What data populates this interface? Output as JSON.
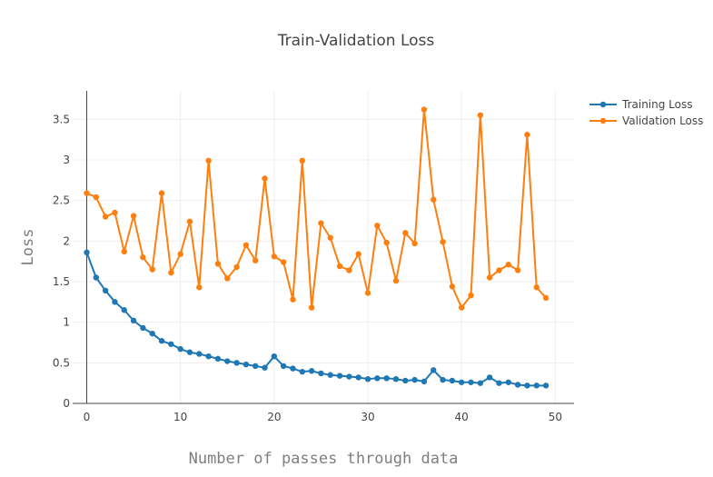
{
  "chart_data": {
    "type": "line",
    "title": "Train-Validation Loss",
    "xlabel": "Number of passes through data",
    "ylabel": "Loss",
    "xlim": [
      -1.5,
      52
    ],
    "ylim": [
      0,
      3.85
    ],
    "xticks": [
      0,
      10,
      20,
      30,
      40,
      50
    ],
    "yticks": [
      0,
      0.5,
      1,
      1.5,
      2,
      2.5,
      3,
      3.5
    ],
    "xtick_labels": [
      "0",
      "10",
      "20",
      "30",
      "40",
      "50"
    ],
    "ytick_labels": [
      "0",
      "0.5",
      "1",
      "1.5",
      "2",
      "2.5",
      "3",
      "3.5"
    ],
    "grid": true,
    "legend_position": "top-right",
    "x": [
      0,
      1,
      2,
      3,
      4,
      5,
      6,
      7,
      8,
      9,
      10,
      11,
      12,
      13,
      14,
      15,
      16,
      17,
      18,
      19,
      20,
      21,
      22,
      23,
      24,
      25,
      26,
      27,
      28,
      29,
      30,
      31,
      32,
      33,
      34,
      35,
      36,
      37,
      38,
      39,
      40,
      41,
      42,
      43,
      44,
      45,
      46,
      47,
      48,
      49
    ],
    "series": [
      {
        "name": "Training Loss",
        "color": "#1f77b4",
        "values": [
          1.86,
          1.55,
          1.39,
          1.25,
          1.15,
          1.02,
          0.93,
          0.86,
          0.77,
          0.73,
          0.67,
          0.63,
          0.61,
          0.58,
          0.55,
          0.52,
          0.5,
          0.48,
          0.46,
          0.44,
          0.58,
          0.46,
          0.43,
          0.39,
          0.4,
          0.37,
          0.35,
          0.34,
          0.33,
          0.32,
          0.3,
          0.31,
          0.31,
          0.3,
          0.28,
          0.29,
          0.27,
          0.41,
          0.29,
          0.28,
          0.26,
          0.26,
          0.25,
          0.32,
          0.25,
          0.26,
          0.23,
          0.22,
          0.22,
          0.22
        ]
      },
      {
        "name": "Validation Loss",
        "color": "#ff7f0e",
        "values": [
          2.59,
          2.54,
          2.3,
          2.35,
          1.87,
          2.31,
          1.8,
          1.65,
          2.59,
          1.61,
          1.84,
          2.24,
          1.43,
          2.99,
          1.72,
          1.54,
          1.68,
          1.95,
          1.76,
          2.77,
          1.81,
          1.74,
          1.28,
          2.99,
          1.18,
          2.22,
          2.04,
          1.69,
          1.64,
          1.84,
          1.36,
          2.19,
          1.98,
          1.51,
          2.1,
          1.97,
          3.62,
          2.51,
          1.99,
          1.44,
          1.18,
          1.33,
          3.55,
          1.55,
          1.64,
          1.71,
          1.64,
          3.31,
          1.43,
          1.3
        ]
      }
    ]
  }
}
